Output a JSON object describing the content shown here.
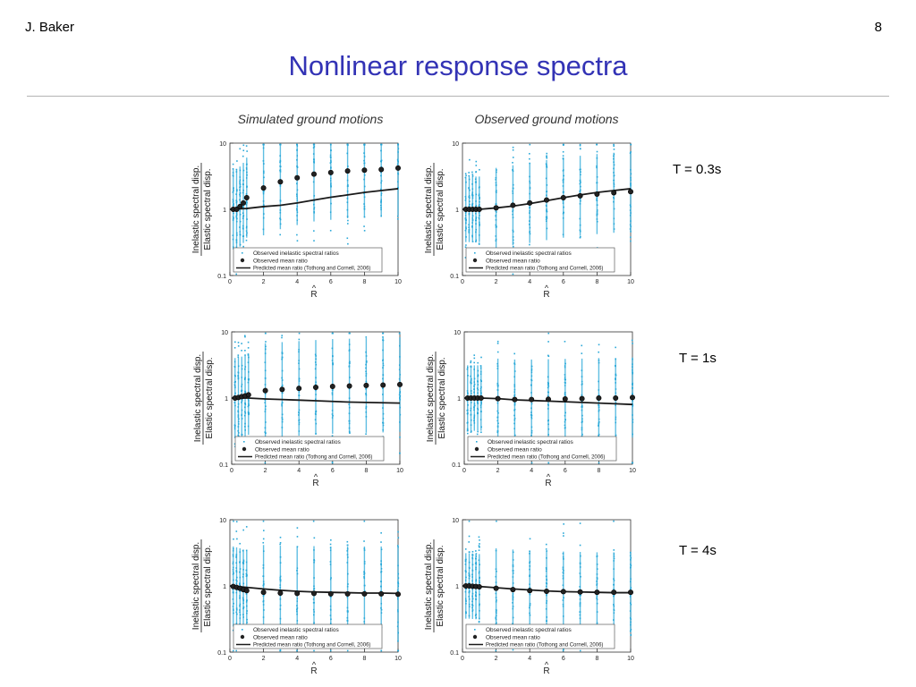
{
  "header": {
    "author": "J. Baker",
    "page_number": "8",
    "title": "Nonlinear response spectra"
  },
  "columns": {
    "left_title": "Simulated ground motions",
    "right_title": "Observed ground motions"
  },
  "rows": [
    {
      "period_label": "T = 0.3s"
    },
    {
      "period_label": "T = 1s"
    },
    {
      "period_label": "T = 4s"
    }
  ],
  "axes": {
    "ylabel_top": "Inelastic spectral disp.",
    "ylabel_bottom": "Elastic spectral disp.",
    "xlabel": "R",
    "xlabel_accent": "^",
    "x_ticks": [
      "0",
      "2",
      "4",
      "6",
      "8",
      "10"
    ],
    "y_ticks": [
      "10",
      "1",
      "0.1"
    ]
  },
  "legend": {
    "scatter": "Observed inelastic spectral ratios",
    "mean": "Observed mean ratio",
    "predicted": "Predicted mean ratio (Tothong and Cornell, 2006)"
  },
  "colors": {
    "title": "#3333b5",
    "scatter": "#2aa8d8",
    "marker": "#222222",
    "line": "#1a1a1a"
  },
  "chart_data": [
    {
      "type": "scatter",
      "panel": "simulated, T = 0.3s",
      "yscale": "log",
      "xlim": [
        0,
        10
      ],
      "ylim": [
        0.1,
        10
      ],
      "series": [
        {
          "name": "Observed mean ratio",
          "x": [
            0.2,
            0.4,
            0.6,
            0.8,
            1,
            2,
            3,
            4,
            5,
            6,
            7,
            8,
            9,
            10
          ],
          "y": [
            1.0,
            1.0,
            1.1,
            1.25,
            1.5,
            2.1,
            2.6,
            3.0,
            3.4,
            3.6,
            3.8,
            3.9,
            4.0,
            4.2
          ]
        },
        {
          "name": "Predicted mean ratio (Tothong and Cornell, 2006)",
          "x": [
            0,
            1,
            2,
            3,
            4,
            5,
            6,
            7,
            8,
            9,
            10
          ],
          "y": [
            1.0,
            1.03,
            1.1,
            1.15,
            1.25,
            1.38,
            1.52,
            1.65,
            1.8,
            1.92,
            2.05
          ]
        }
      ]
    },
    {
      "type": "scatter",
      "panel": "observed, T = 0.3s",
      "yscale": "log",
      "xlim": [
        0,
        10
      ],
      "ylim": [
        0.1,
        10
      ],
      "series": [
        {
          "name": "Observed mean ratio",
          "x": [
            0.2,
            0.4,
            0.6,
            0.8,
            1,
            2,
            3,
            4,
            5,
            6,
            7,
            8,
            9,
            10
          ],
          "y": [
            1.0,
            1.0,
            1.0,
            1.0,
            1.0,
            1.05,
            1.15,
            1.25,
            1.38,
            1.5,
            1.6,
            1.7,
            1.78,
            1.85
          ]
        },
        {
          "name": "Predicted mean ratio (Tothong and Cornell, 2006)",
          "x": [
            0,
            1,
            2,
            3,
            4,
            5,
            6,
            7,
            8,
            9,
            10
          ],
          "y": [
            1.0,
            1.0,
            1.05,
            1.12,
            1.22,
            1.35,
            1.5,
            1.65,
            1.8,
            1.92,
            2.05
          ]
        }
      ]
    },
    {
      "type": "scatter",
      "panel": "simulated, T = 1s",
      "yscale": "log",
      "xlim": [
        0,
        10
      ],
      "ylim": [
        0.1,
        10
      ],
      "series": [
        {
          "name": "Observed mean ratio",
          "x": [
            0.2,
            0.4,
            0.6,
            0.8,
            1,
            2,
            3,
            4,
            5,
            6,
            7,
            8,
            9,
            10
          ],
          "y": [
            1.0,
            1.02,
            1.05,
            1.08,
            1.12,
            1.3,
            1.35,
            1.4,
            1.45,
            1.5,
            1.52,
            1.55,
            1.57,
            1.6
          ]
        },
        {
          "name": "Predicted mean ratio (Tothong and Cornell, 2006)",
          "x": [
            0,
            1,
            2,
            3,
            4,
            5,
            6,
            7,
            8,
            9,
            10
          ],
          "y": [
            1.0,
            1.0,
            0.97,
            0.95,
            0.93,
            0.91,
            0.89,
            0.87,
            0.86,
            0.85,
            0.84
          ]
        }
      ]
    },
    {
      "type": "scatter",
      "panel": "observed, T = 1s",
      "yscale": "log",
      "xlim": [
        0,
        10
      ],
      "ylim": [
        0.1,
        10
      ],
      "series": [
        {
          "name": "Observed mean ratio",
          "x": [
            0.2,
            0.4,
            0.6,
            0.8,
            1,
            2,
            3,
            4,
            5,
            6,
            7,
            8,
            9,
            10
          ],
          "y": [
            1.0,
            1.0,
            1.0,
            1.0,
            1.0,
            0.98,
            0.95,
            0.95,
            0.96,
            0.97,
            0.98,
            1.0,
            1.0,
            1.02
          ]
        },
        {
          "name": "Predicted mean ratio (Tothong and Cornell, 2006)",
          "x": [
            0,
            1,
            2,
            3,
            4,
            5,
            6,
            7,
            8,
            9,
            10
          ],
          "y": [
            1.0,
            1.0,
            0.98,
            0.94,
            0.92,
            0.9,
            0.88,
            0.86,
            0.84,
            0.82,
            0.8
          ]
        }
      ]
    },
    {
      "type": "scatter",
      "panel": "simulated, T = 4s",
      "yscale": "log",
      "xlim": [
        0,
        10
      ],
      "ylim": [
        0.1,
        10
      ],
      "series": [
        {
          "name": "Observed mean ratio",
          "x": [
            0.2,
            0.4,
            0.6,
            0.8,
            1,
            2,
            3,
            4,
            5,
            6,
            7,
            8,
            9,
            10
          ],
          "y": [
            0.98,
            0.95,
            0.92,
            0.88,
            0.85,
            0.8,
            0.78,
            0.77,
            0.77,
            0.76,
            0.76,
            0.76,
            0.76,
            0.75
          ]
        },
        {
          "name": "Predicted mean ratio (Tothong and Cornell, 2006)",
          "x": [
            0,
            1,
            2,
            3,
            4,
            5,
            6,
            7,
            8,
            9,
            10
          ],
          "y": [
            1.0,
            0.95,
            0.9,
            0.86,
            0.83,
            0.81,
            0.8,
            0.79,
            0.78,
            0.78,
            0.77
          ]
        }
      ]
    },
    {
      "type": "scatter",
      "panel": "observed, T = 4s",
      "yscale": "log",
      "xlim": [
        0,
        10
      ],
      "ylim": [
        0.1,
        10
      ],
      "series": [
        {
          "name": "Observed mean ratio",
          "x": [
            0.2,
            0.4,
            0.6,
            0.8,
            1,
            2,
            3,
            4,
            5,
            6,
            7,
            8,
            9,
            10
          ],
          "y": [
            1.0,
            1.0,
            0.99,
            0.98,
            0.97,
            0.92,
            0.88,
            0.85,
            0.83,
            0.82,
            0.81,
            0.8,
            0.8,
            0.8
          ]
        },
        {
          "name": "Predicted mean ratio (Tothong and Cornell, 2006)",
          "x": [
            0,
            1,
            2,
            3,
            4,
            5,
            6,
            7,
            8,
            9,
            10
          ],
          "y": [
            1.0,
            0.98,
            0.94,
            0.9,
            0.87,
            0.84,
            0.82,
            0.81,
            0.8,
            0.79,
            0.79
          ]
        }
      ]
    }
  ]
}
